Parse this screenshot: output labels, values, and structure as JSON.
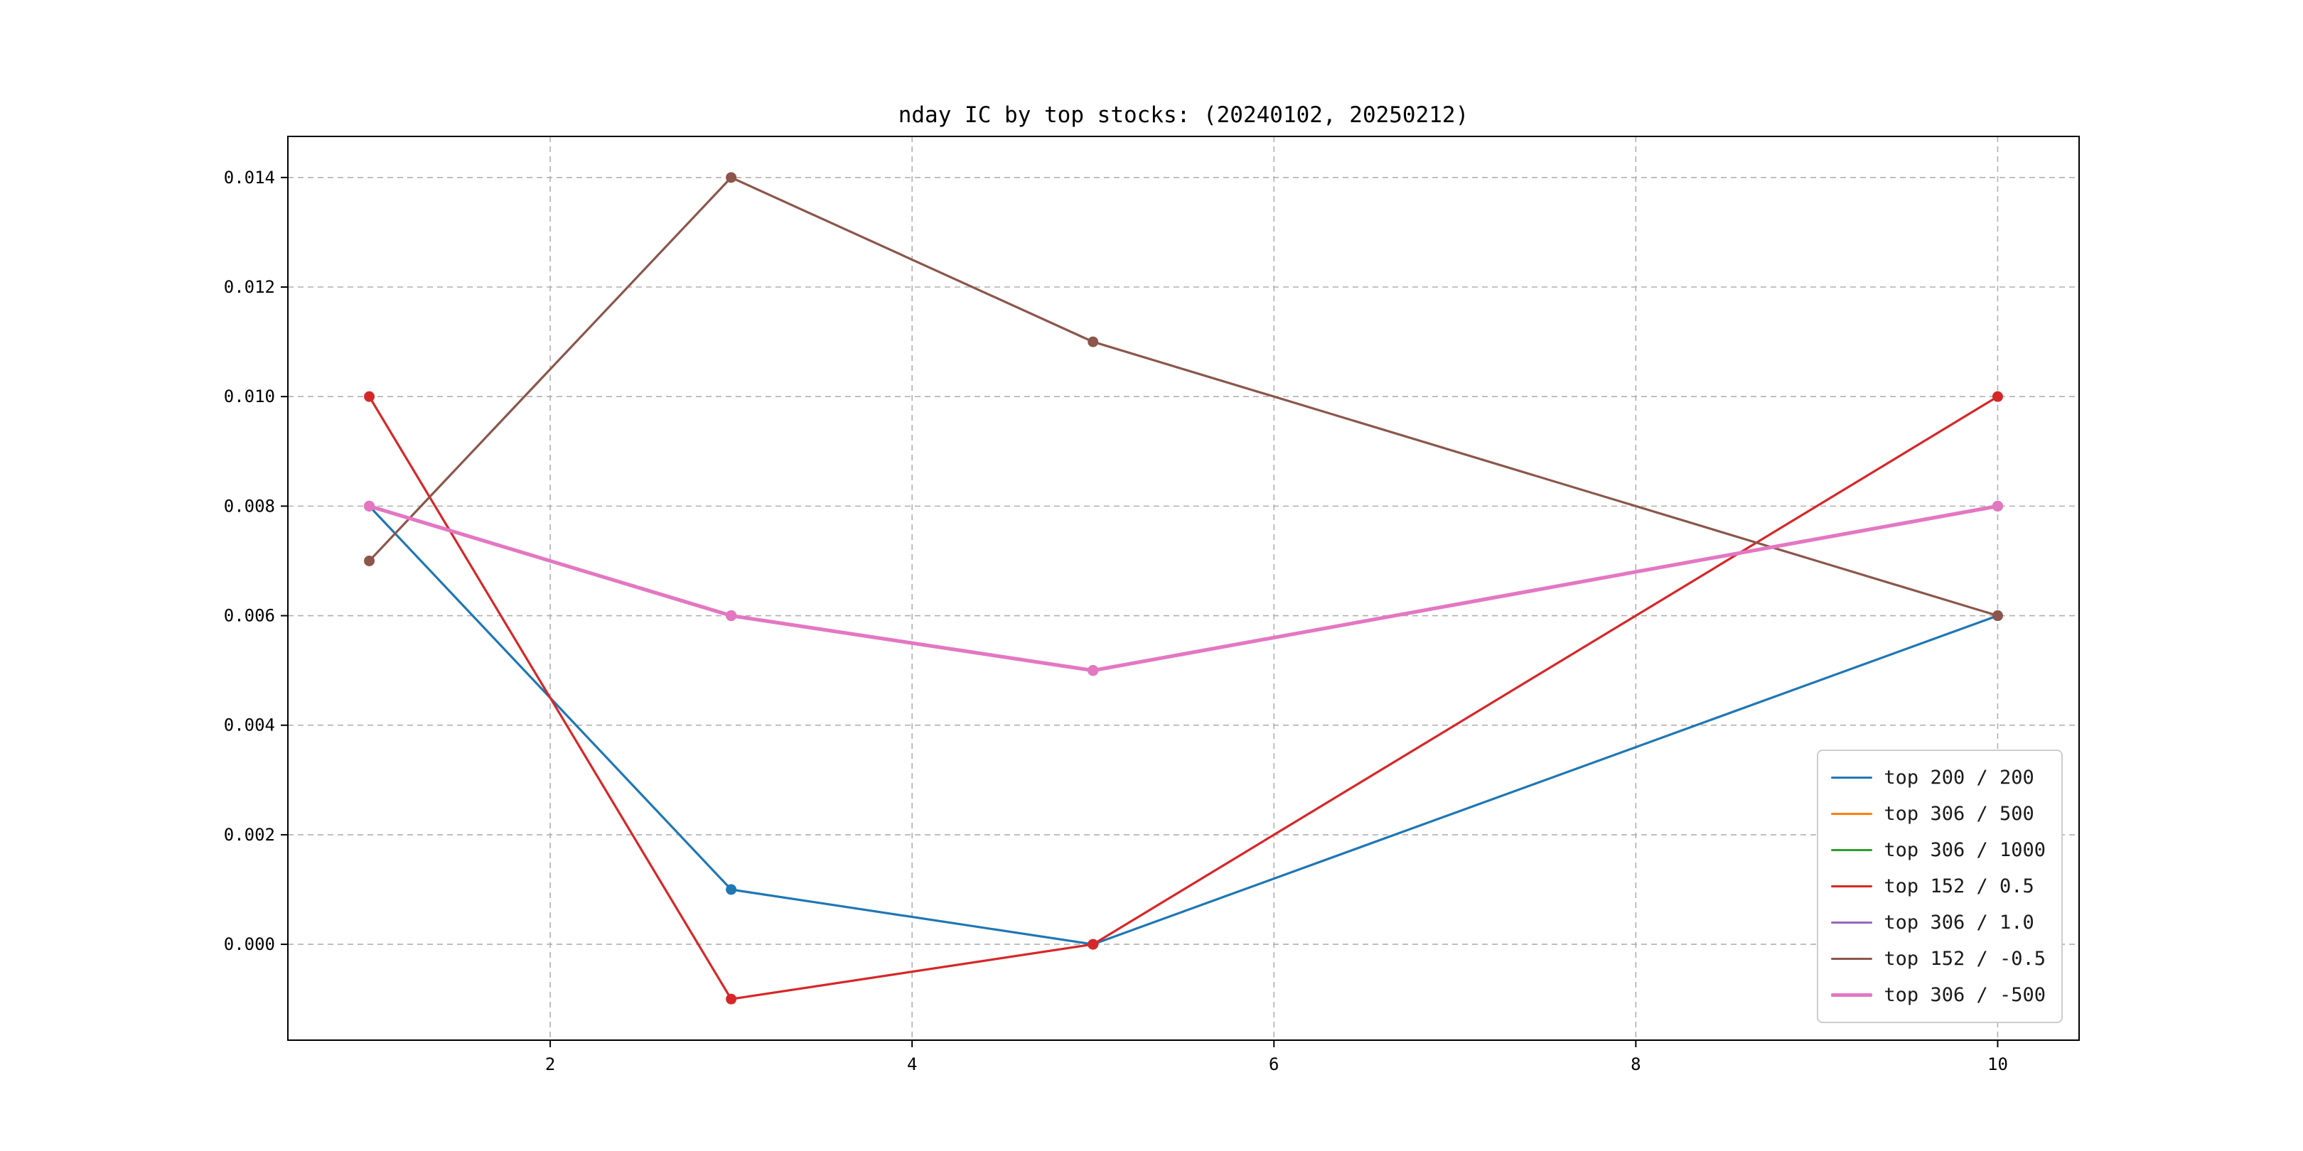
{
  "figure": {
    "title": "nday IC by top stocks: (20240102, 20250212)"
  },
  "chart_data": {
    "type": "line",
    "title": "nday IC by top stocks: (20240102, 20250212)",
    "xlabel": "",
    "ylabel": "",
    "grid": true,
    "legend_position": "lower right",
    "x": [
      1,
      3,
      5,
      10
    ],
    "xlim": [
      0.55,
      10.45
    ],
    "ylim": [
      -0.00175,
      0.01475
    ],
    "xticks": [
      2,
      4,
      6,
      8,
      10
    ],
    "xtick_labels": [
      "2",
      "4",
      "6",
      "8",
      "10"
    ],
    "yticks": [
      0.0,
      0.002,
      0.004,
      0.006,
      0.008,
      0.01,
      0.012,
      0.014
    ],
    "ytick_labels": [
      "0.000",
      "0.002",
      "0.004",
      "0.006",
      "0.008",
      "0.010",
      "0.012",
      "0.014"
    ],
    "series": [
      {
        "name": "top 200 / 200",
        "color": "#1f77b4",
        "lw": 3.2,
        "values": [
          0.008,
          0.001,
          0.0,
          0.006
        ]
      },
      {
        "name": "top 306 / 500",
        "color": "#ff7f0e",
        "lw": 3.2,
        "values": [
          0.008,
          0.006,
          0.005,
          0.008
        ]
      },
      {
        "name": "top 306 / 1000",
        "color": "#2ca02c",
        "lw": 3.2,
        "values": [
          0.008,
          0.006,
          0.005,
          0.008
        ]
      },
      {
        "name": "top 152 / 0.5",
        "color": "#d62728",
        "lw": 3.2,
        "values": [
          0.01,
          -0.001,
          0.0,
          0.01
        ]
      },
      {
        "name": "top 306 / 1.0",
        "color": "#9467bd",
        "lw": 3.2,
        "values": [
          0.008,
          0.006,
          0.005,
          0.008
        ]
      },
      {
        "name": "top 152 / -0.5",
        "color": "#8c564b",
        "lw": 3.2,
        "values": [
          0.007,
          0.014,
          0.011,
          0.006
        ]
      },
      {
        "name": "top 306 / -500",
        "color": "#e377c2",
        "lw": 5.2,
        "values": [
          0.008,
          0.006,
          0.005,
          0.008
        ]
      }
    ],
    "colors": {
      "grid": "#b0b0b0",
      "spine": "#000000",
      "background": "#ffffff"
    }
  }
}
